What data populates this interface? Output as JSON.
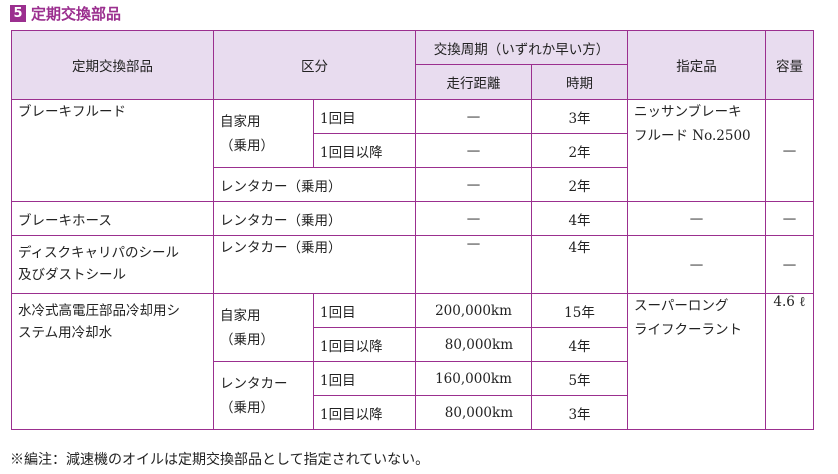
{
  "section": {
    "number": "5",
    "title": "定期交換部品"
  },
  "headers": {
    "part": "定期交換部品",
    "category": "区分",
    "cycle": "交換周期（いずれか早い方）",
    "distance": "走行距離",
    "period": "時期",
    "designated": "指定品",
    "capacity": "容量"
  },
  "rows": {
    "brake_fluid": {
      "part": "ブレーキフルード",
      "private": "自家用",
      "private_sub": "（乗用）",
      "first": "1回目",
      "first_dist": "—",
      "first_time": "3年",
      "after": "1回目以降",
      "after_dist": "—",
      "after_time": "2年",
      "rental": "レンタカー（乗用）",
      "rental_dist": "—",
      "rental_time": "2年",
      "designated_1": "ニッサンブレーキ",
      "designated_2": "フルード No.2500",
      "capacity": "—"
    },
    "brake_hose": {
      "part": "ブレーキホース",
      "category": "レンタカー（乗用）",
      "dist": "—",
      "time": "4年",
      "designated": "—",
      "capacity": "—"
    },
    "caliper_seal": {
      "part_1": "ディスクキャリパのシール",
      "part_2": "及びダストシール",
      "category": "レンタカー（乗用）",
      "dist": "—",
      "time": "4年",
      "designated": "—",
      "capacity": "—"
    },
    "coolant": {
      "part_1": "水冷式高電圧部品冷却用シ",
      "part_2": "ステム用冷却水",
      "private": "自家用",
      "private_sub": "（乗用）",
      "p_first": "1回目",
      "p_first_dist": "200,000km",
      "p_first_time": "15年",
      "p_after": "1回目以降",
      "p_after_dist": "80,000km",
      "p_after_time": "4年",
      "rental": "レンタカー",
      "rental_sub": "（乗用）",
      "r_first": "1回目",
      "r_first_dist": "160,000km",
      "r_first_time": "5年",
      "r_after": "1回目以降",
      "r_after_dist": "80,000km",
      "r_after_time": "3年",
      "designated_1": "スーパーロング",
      "designated_2": "ライフクーラント",
      "capacity": "4.6 ℓ"
    }
  },
  "footnote": "※編注：減速機のオイルは定期交換部品として指定されていない。",
  "colors": {
    "accent": "#9b2f8f",
    "header_bg": "#e8dcef"
  }
}
